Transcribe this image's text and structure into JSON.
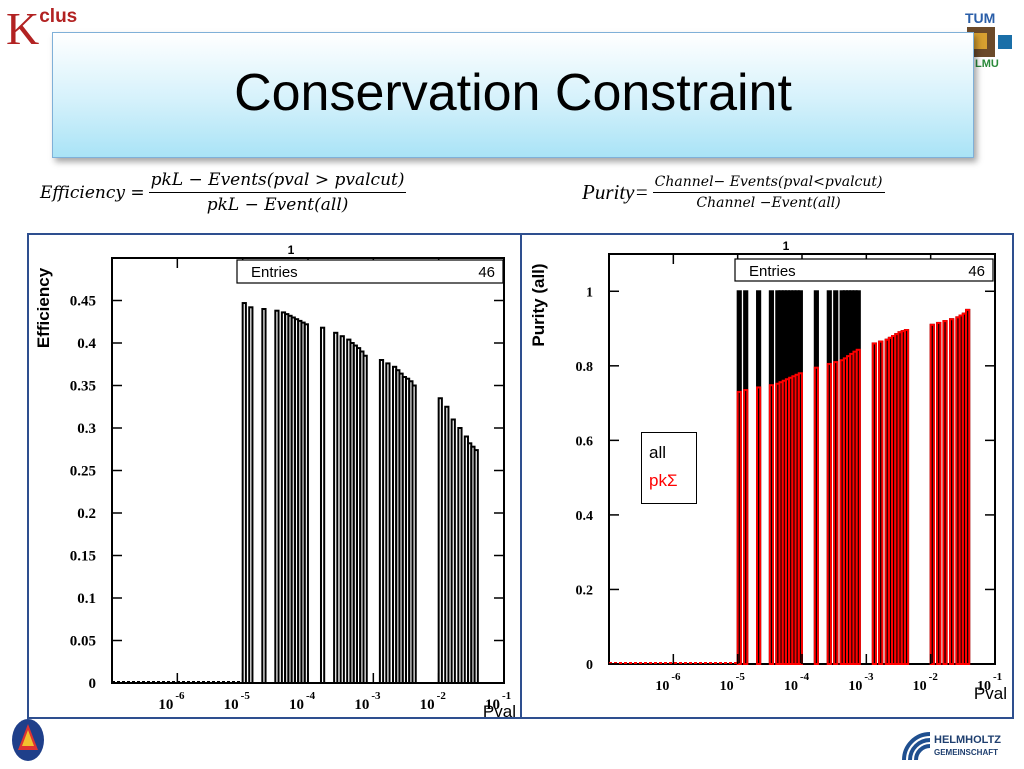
{
  "slide": {
    "title": "Conservation Constraint",
    "logo_left": "K",
    "logo_left_sup": "clus",
    "logo_right_top": "TUM",
    "logo_right_bottom": "LMU",
    "logo_bottom_right": [
      "HELMHOLTZ",
      "GEMEINSCHAFT"
    ]
  },
  "formulas": {
    "efficiency": {
      "lhs": "Efficiency =",
      "numerator": "pkL − Events(pval > pvalcut)",
      "denominator": "pkL −  Event(all)"
    },
    "purity": {
      "lhs": "Purity=",
      "numerator": "Channel− Events(pval<pvalcut)",
      "denominator": "Channel −Event(all)"
    }
  },
  "legend": {
    "all": "all",
    "pksigma": "pkΣ",
    "all_color": "#000000",
    "pksigma_color": "#ff0000"
  },
  "chart_data": [
    {
      "type": "bar",
      "xscale": "log",
      "xlim": [
        1e-07,
        0.1
      ],
      "ylim": [
        0,
        0.5
      ],
      "ylabel": "Efficiency",
      "xlabel": "Pval",
      "top_label": "1",
      "stats": {
        "label": "Entries",
        "value": "46"
      },
      "yticks": [
        "0",
        "0.05",
        "0.1",
        "0.15",
        "0.2",
        "0.25",
        "0.3",
        "0.35",
        "0.4",
        "0.45"
      ],
      "ytick_values": [
        0,
        0.05,
        0.1,
        0.15,
        0.2,
        0.25,
        0.3,
        0.35,
        0.4,
        0.45
      ],
      "xtick_exps": [
        "-6",
        "-5",
        "-4",
        "-3",
        "-2",
        "-1"
      ],
      "xtick_values": [
        1e-06,
        1e-05,
        0.0001,
        0.001,
        0.01,
        0.1
      ],
      "series": [
        {
          "color": "#000000",
          "x": [
            1e-05,
            1.26e-05,
            2e-05,
            3.16e-05,
            3.98e-05,
            4.47e-05,
            5.01e-05,
            5.62e-05,
            6.31e-05,
            7.08e-05,
            7.94e-05,
            8.91e-05,
            0.000158,
            0.000251,
            0.000316,
            0.000398,
            0.000447,
            0.000501,
            0.000562,
            0.000631,
            0.000708,
            0.00126,
            0.00158,
            0.002,
            0.00224,
            0.00251,
            0.00282,
            0.00316,
            0.00355,
            0.00398,
            0.01,
            0.0126,
            0.0158,
            0.02,
            0.0251,
            0.0282,
            0.0316,
            0.0355
          ],
          "values": [
            0.447,
            0.442,
            0.44,
            0.438,
            0.436,
            0.434,
            0.432,
            0.43,
            0.428,
            0.426,
            0.424,
            0.422,
            0.418,
            0.412,
            0.408,
            0.404,
            0.4,
            0.397,
            0.394,
            0.39,
            0.385,
            0.38,
            0.376,
            0.372,
            0.368,
            0.364,
            0.36,
            0.358,
            0.355,
            0.35,
            0.335,
            0.325,
            0.31,
            0.3,
            0.29,
            0.282,
            0.278,
            0.274
          ]
        }
      ]
    },
    {
      "type": "bar",
      "xscale": "log",
      "xlim": [
        1e-07,
        0.1
      ],
      "ylim": [
        0,
        1.1
      ],
      "ylabel": "Purity (all)",
      "xlabel": "Pval",
      "top_label": "1",
      "stats": {
        "label": "Entries",
        "value": "46"
      },
      "yticks": [
        "0",
        "0.2",
        "0.4",
        "0.6",
        "0.8",
        "1"
      ],
      "ytick_values": [
        0,
        0.2,
        0.4,
        0.6,
        0.8,
        1
      ],
      "xtick_exps": [
        "-6",
        "-5",
        "-4",
        "-3",
        "-2",
        "-1"
      ],
      "xtick_values": [
        1e-06,
        1e-05,
        0.0001,
        0.001,
        0.01,
        0.1
      ],
      "series": [
        {
          "name": "all",
          "color": "#000000",
          "x": [
            1e-05,
            1.26e-05,
            2e-05,
            3.16e-05,
            3.98e-05,
            4.47e-05,
            5.01e-05,
            5.62e-05,
            6.31e-05,
            7.08e-05,
            7.94e-05,
            8.91e-05,
            0.000158,
            0.000251,
            0.000316,
            0.000398,
            0.000447,
            0.000501,
            0.000562,
            0.000631,
            0.000708,
            0.00126,
            0.00158,
            0.002,
            0.00224,
            0.00251,
            0.00282,
            0.00316,
            0.00355,
            0.00398,
            0.01,
            0.0126,
            0.0158,
            0.02,
            0.0251,
            0.0282,
            0.0316,
            0.0355
          ],
          "values": [
            1,
            1,
            1,
            1,
            1,
            1,
            1,
            1,
            1,
            1,
            1,
            1,
            1,
            1,
            1,
            1,
            1,
            1,
            1,
            1,
            1,
            0.86,
            0.865,
            0.87,
            0.875,
            0.88,
            0.885,
            0.89,
            0.893,
            0.896,
            0.91,
            0.915,
            0.92,
            0.925,
            0.93,
            0.935,
            0.94,
            0.95
          ]
        },
        {
          "name": "pkΣ",
          "color": "#ff0000",
          "x": [
            1e-05,
            1.26e-05,
            2e-05,
            3.16e-05,
            3.98e-05,
            4.47e-05,
            5.01e-05,
            5.62e-05,
            6.31e-05,
            7.08e-05,
            7.94e-05,
            8.91e-05,
            0.000158,
            0.000251,
            0.000316,
            0.000398,
            0.000447,
            0.000501,
            0.000562,
            0.000631,
            0.000708,
            0.00126,
            0.00158,
            0.002,
            0.00224,
            0.00251,
            0.00282,
            0.00316,
            0.00355,
            0.00398,
            0.01,
            0.0126,
            0.0158,
            0.02,
            0.0251,
            0.0282,
            0.0316,
            0.0355
          ],
          "values": [
            0.73,
            0.735,
            0.742,
            0.748,
            0.752,
            0.756,
            0.76,
            0.764,
            0.768,
            0.772,
            0.776,
            0.78,
            0.795,
            0.805,
            0.81,
            0.815,
            0.82,
            0.826,
            0.832,
            0.838,
            0.843,
            0.86,
            0.865,
            0.87,
            0.875,
            0.88,
            0.885,
            0.89,
            0.893,
            0.896,
            0.91,
            0.915,
            0.92,
            0.925,
            0.93,
            0.935,
            0.94,
            0.95
          ]
        }
      ]
    }
  ]
}
